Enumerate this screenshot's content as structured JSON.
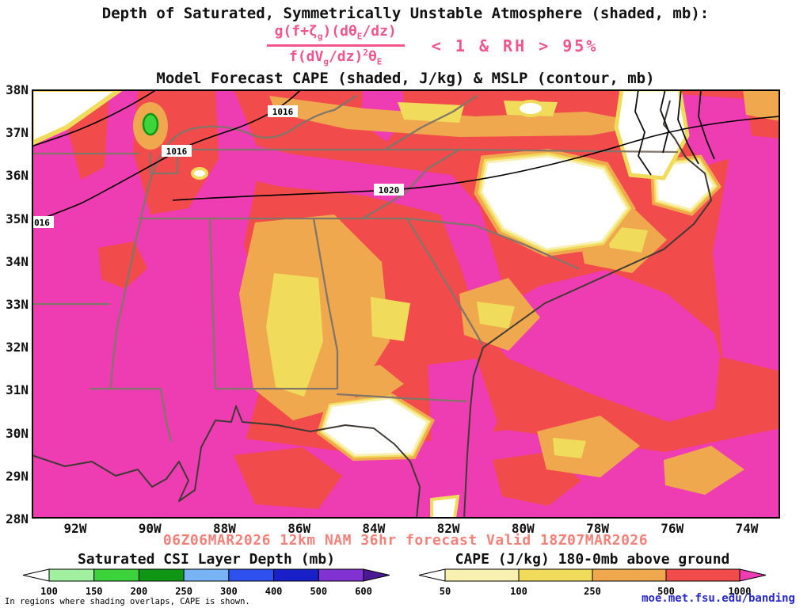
{
  "header": {
    "title": "Depth of Saturated, Symmetrically Unstable Atmosphere (shaded, mb):",
    "formula": {
      "num_1": "g(f+ζ",
      "num_sub1": "g",
      "num_2": ")(dθ",
      "num_sub2": "E",
      "num_3": "/dz)",
      "den_1": "f(dV",
      "den_sub1": "g",
      "den_2": "/dz)",
      "den_sup": "2",
      "den_3": "θ",
      "den_sub3": "E",
      "condition": "< 1 & RH > 95%",
      "color": "#f0558c"
    },
    "subtitle": "Model Forecast CAPE (shaded, J/kg) & MSLP (contour, mb)"
  },
  "map": {
    "lat_labels": [
      "38N",
      "37N",
      "36N",
      "35N",
      "34N",
      "33N",
      "32N",
      "31N",
      "30N",
      "29N",
      "28N"
    ],
    "lon_labels": [
      "92W",
      "90W",
      "88W",
      "86W",
      "84W",
      "82W",
      "80W",
      "78W",
      "76W",
      "74W"
    ],
    "contour_labels": {
      "c1": "1016",
      "c2": "1016",
      "c3": "1020",
      "c4": "016"
    },
    "shading_colors": {
      "magenta": "#ee3cb2",
      "red": "#f14b4b",
      "orange": "#efa84e",
      "yellow": "#f0dc5a",
      "pale_yellow": "#f7f0b0",
      "csi_green": "#3cd63c"
    }
  },
  "footer": {
    "forecast_line": "06Z06MAR2026 12km NAM 36hr forecast Valid 18Z07MAR2026",
    "forecast_color": "#f4807a",
    "note": "In regions where shading overlaps, CAPE is shown.",
    "site": "moe.met.fsu.edu/banding",
    "site_color": "#2929cc"
  },
  "legends": [
    {
      "title": "Saturated CSI Layer Depth (mb)",
      "ticks": [
        "100",
        "150",
        "200",
        "250",
        "300",
        "400",
        "500",
        "600"
      ],
      "left_arrow": "#ffffff",
      "segments": [
        "#a0f0a0",
        "#3cd23c",
        "#0f9614",
        "#78b4f5",
        "#2d50ee",
        "#1920c8",
        "#8232d2"
      ],
      "right_arrow": "#4b1996"
    },
    {
      "title": "CAPE (J/kg) 180-0mb above ground",
      "ticks": [
        "50",
        "100",
        "250",
        "500",
        "1000"
      ],
      "left_arrow": "#ffffff",
      "segments": [
        "#f7f0b0",
        "#f0dc5a",
        "#efa84e",
        "#f14b4b"
      ],
      "right_arrow": "#ee3cb2"
    }
  ]
}
